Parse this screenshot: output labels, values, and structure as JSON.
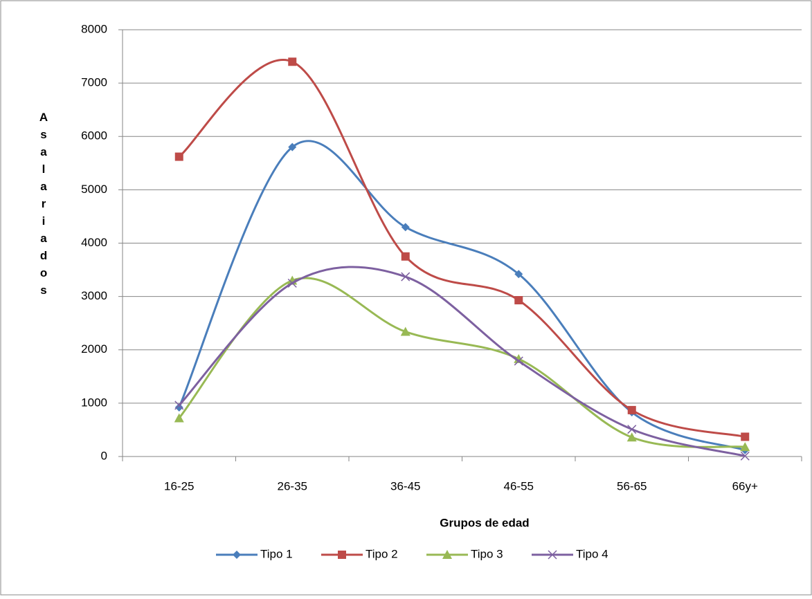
{
  "chart_data": {
    "type": "line",
    "xlabel": "Grupos de edad",
    "ylabel": "Asalariados",
    "categories": [
      "16-25",
      "26-35",
      "36-45",
      "46-55",
      "56-65",
      "66y+"
    ],
    "series": [
      {
        "name": "Tipo 1",
        "color": "#4a7ebb",
        "marker": "diamond",
        "values": [
          920,
          5800,
          4300,
          3420,
          830,
          120
        ]
      },
      {
        "name": "Tipo 2",
        "color": "#be4b48",
        "marker": "square",
        "values": [
          5620,
          7400,
          3750,
          2930,
          870,
          370
        ]
      },
      {
        "name": "Tipo 3",
        "color": "#98b954",
        "marker": "triangle",
        "values": [
          720,
          3300,
          2340,
          1830,
          360,
          180
        ]
      },
      {
        "name": "Tipo 4",
        "color": "#7d60a0",
        "marker": "x",
        "values": [
          960,
          3250,
          3370,
          1790,
          510,
          10
        ]
      }
    ],
    "smooth": true,
    "ylim": [
      0,
      8000
    ],
    "yticks": [
      0,
      1000,
      2000,
      3000,
      4000,
      5000,
      6000,
      7000,
      8000
    ],
    "grid": true,
    "legend": "bottom"
  }
}
